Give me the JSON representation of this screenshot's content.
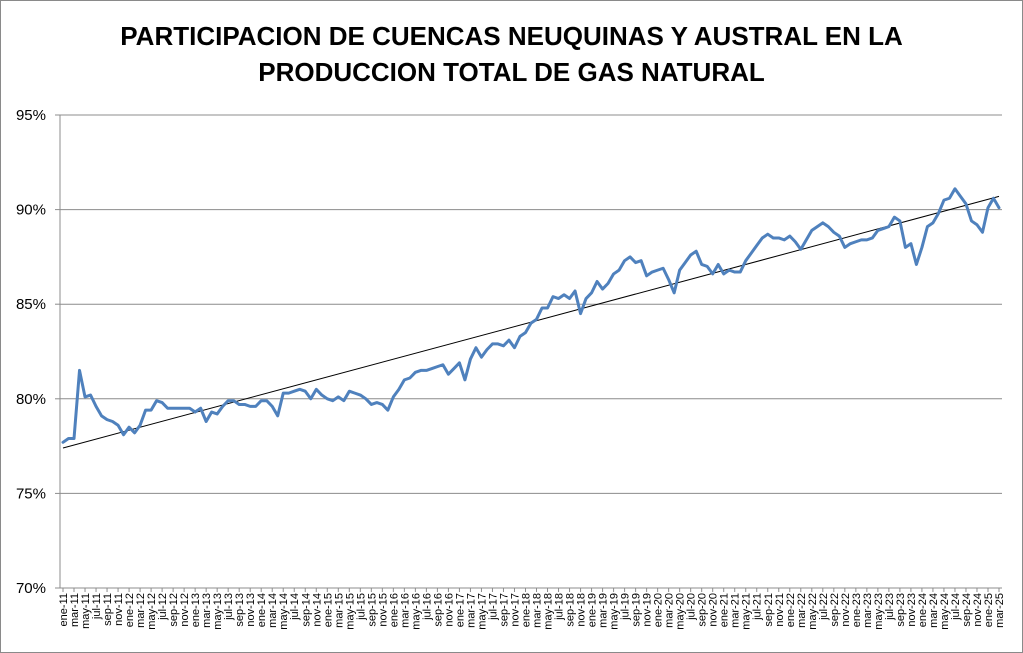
{
  "chart_data": {
    "type": "line",
    "title_line1": "PARTICIPACION DE CUENCAS NEUQUINAS Y AUSTRAL EN LA",
    "title_line2": "PRODUCCION TOTAL DE GAS NATURAL",
    "xlabel": "",
    "ylabel": "",
    "ylim": [
      0.7,
      0.95
    ],
    "yticks": [
      "70%",
      "75%",
      "80%",
      "85%",
      "90%",
      "95%"
    ],
    "grid": true,
    "legend": "none",
    "series_color": "#4f81bd",
    "trend_color": "#000000",
    "xticks": [
      "ene-11",
      "mar-11",
      "may-11",
      "jul-11",
      "sep-11",
      "nov-11",
      "ene-12",
      "mar-12",
      "may-12",
      "jul-12",
      "sep-12",
      "nov-12",
      "ene-13",
      "mar-13",
      "may-13",
      "jul-13",
      "sep-13",
      "nov-13",
      "ene-14",
      "mar-14",
      "may-14",
      "jul-14",
      "sep-14",
      "nov-14",
      "ene-15",
      "mar-15",
      "may-15",
      "jul-15",
      "sep-15",
      "nov-15",
      "ene-16",
      "mar-16",
      "may-16",
      "jul-16",
      "sep-16",
      "nov-16",
      "ene-17",
      "mar-17",
      "may-17",
      "jul-17",
      "sep-17",
      "nov-17",
      "ene-18",
      "mar-18",
      "may-18",
      "jul-18",
      "sep-18",
      "nov-18",
      "ene-19",
      "mar-19",
      "may-19",
      "jul-19",
      "sep-19",
      "nov-19",
      "ene-20",
      "mar-20",
      "may-20",
      "jul-20",
      "sep-20",
      "nov-20",
      "ene-21",
      "mar-21",
      "may-21",
      "jul-21",
      "sep-21",
      "nov-21",
      "ene-22",
      "mar-22",
      "may-22",
      "jul-22",
      "sep-22",
      "nov-22",
      "ene-23",
      "mar-23",
      "may-23",
      "jul-23",
      "sep-23",
      "nov-23",
      "ene-24",
      "mar-24",
      "may-24",
      "jul-24",
      "sep-24",
      "nov-24",
      "ene-25",
      "mar-25"
    ],
    "series": [
      {
        "values": [
          0.777,
          0.779,
          0.779,
          0.815,
          0.801,
          0.802,
          0.796,
          0.791,
          0.789,
          0.788,
          0.786,
          0.781,
          0.785,
          0.782,
          0.786,
          0.794,
          0.794,
          0.799,
          0.798,
          0.795,
          0.795,
          0.795,
          0.795,
          0.795,
          0.793,
          0.795,
          0.788,
          0.793,
          0.792,
          0.796,
          0.799,
          0.799,
          0.797,
          0.797,
          0.796,
          0.796,
          0.799,
          0.799,
          0.796,
          0.791,
          0.803,
          0.803,
          0.804,
          0.805,
          0.804,
          0.8,
          0.805,
          0.802,
          0.8,
          0.799,
          0.801,
          0.799,
          0.804,
          0.803,
          0.802,
          0.8,
          0.797,
          0.798,
          0.797,
          0.794,
          0.801,
          0.805,
          0.81,
          0.811,
          0.814,
          0.815,
          0.815,
          0.816,
          0.817,
          0.818,
          0.813,
          0.816,
          0.819,
          0.81,
          0.821,
          0.827,
          0.822,
          0.826,
          0.829,
          0.829,
          0.828,
          0.831,
          0.827,
          0.833,
          0.835,
          0.84,
          0.842,
          0.848,
          0.848,
          0.854,
          0.853,
          0.855,
          0.853,
          0.857,
          0.845,
          0.853,
          0.856,
          0.862,
          0.858,
          0.861,
          0.866,
          0.868,
          0.873,
          0.875,
          0.872,
          0.873,
          0.865,
          0.867,
          0.868,
          0.869,
          0.863,
          0.856,
          0.868,
          0.872,
          0.876,
          0.878,
          0.871,
          0.87,
          0.866,
          0.871,
          0.866,
          0.868,
          0.867,
          0.867,
          0.873,
          0.877,
          0.881,
          0.885,
          0.887,
          0.885,
          0.885,
          0.884,
          0.886,
          0.883,
          0.879,
          0.884,
          0.889,
          0.891,
          0.893,
          0.891,
          0.888,
          0.886,
          0.88,
          0.882,
          0.883,
          0.884,
          0.884,
          0.885,
          0.889,
          0.89,
          0.891,
          0.896,
          0.894,
          0.88,
          0.882,
          0.871,
          0.88,
          0.891,
          0.893,
          0.898,
          0.905,
          0.906,
          0.911,
          0.907,
          0.903,
          0.894,
          0.892,
          0.888,
          0.901,
          0.906,
          0.901
        ]
      }
    ],
    "trendline": [
      0.774,
      0.907
    ]
  }
}
